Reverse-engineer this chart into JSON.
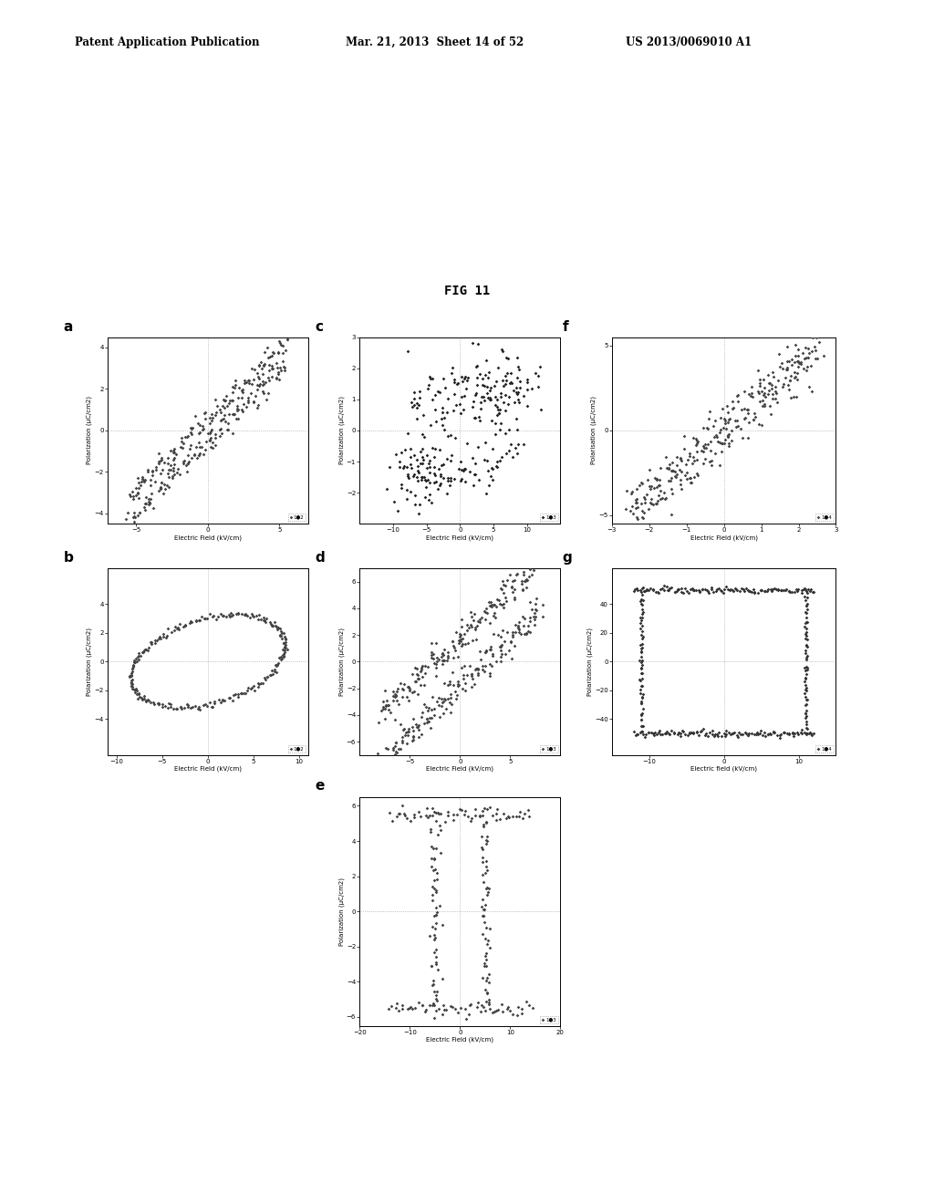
{
  "header_left": "Patent Application Publication",
  "header_center": "Mar. 21, 2013  Sheet 14 of 52",
  "header_right": "US 2013/0069010 A1",
  "fig_title": "FIG 11",
  "subplots": {
    "a": {
      "label": "a",
      "xlim": [
        -7,
        7
      ],
      "ylim": [
        -4.5,
        4.5
      ],
      "xticks": [
        -5,
        0,
        5
      ],
      "yticks": [
        -4,
        -2,
        0,
        2,
        4
      ],
      "xlabel": "Electric Field (kV/cm)",
      "ylabel": "Polarization (μC/cm2)",
      "legend": "1●2",
      "color": "#444444"
    },
    "b": {
      "label": "b",
      "xlim": [
        -11,
        11
      ],
      "ylim": [
        -6.5,
        6.5
      ],
      "xticks": [
        -10,
        -5,
        0,
        5,
        10
      ],
      "yticks": [
        -4,
        -2,
        0,
        2,
        4
      ],
      "xlabel": "Electric Field (kV/cm)",
      "ylabel": "Polarization (μC/cm2)",
      "legend": "1●2",
      "color": "#444444"
    },
    "c": {
      "label": "c",
      "xlim": [
        -15,
        15
      ],
      "ylim": [
        -3,
        3
      ],
      "xticks": [
        -10,
        -5,
        0,
        5,
        10
      ],
      "yticks": [
        -2,
        -1,
        0,
        1,
        2,
        3
      ],
      "xlabel": "Electric Field (kV/cm)",
      "ylabel": "Polarization (μC/cm2)",
      "legend": "1●3",
      "color": "#222222"
    },
    "d": {
      "label": "d",
      "xlim": [
        -10,
        10
      ],
      "ylim": [
        -7,
        7
      ],
      "xticks": [
        -5,
        0,
        5
      ],
      "yticks": [
        -6,
        -4,
        -2,
        0,
        2,
        4,
        6
      ],
      "xlabel": "Electric Field (kV/cm)",
      "ylabel": "Polarization (μC/cm2)",
      "legend": "1●3",
      "color": "#444444"
    },
    "e": {
      "label": "e",
      "xlim": [
        -20,
        20
      ],
      "ylim": [
        -6.5,
        6.5
      ],
      "xticks": [
        -20,
        -10,
        0,
        10,
        20
      ],
      "yticks": [
        -6,
        -4,
        -2,
        0,
        2,
        4,
        6
      ],
      "xlabel": "Electric Field (kV/cm)",
      "ylabel": "Polarization (μC/cm2)",
      "legend": "1●3",
      "color": "#444444"
    },
    "f": {
      "label": "f",
      "xlim": [
        -3,
        3
      ],
      "ylim": [
        -5.5,
        5.5
      ],
      "xticks": [
        -3,
        -2,
        -1,
        0,
        1,
        2,
        3
      ],
      "yticks": [
        -5,
        0,
        5
      ],
      "xlabel": "Electric Field (kV/cm)",
      "ylabel": "Polarisation (μC/cm2)",
      "legend": "1●4",
      "color": "#444444"
    },
    "g": {
      "label": "g",
      "xlim": [
        -15,
        15
      ],
      "ylim": [
        -65,
        65
      ],
      "xticks": [
        -10,
        0,
        10
      ],
      "yticks": [
        -40,
        -20,
        0,
        20,
        40
      ],
      "xlabel": "Electric field (kV/cm)",
      "ylabel": "Polarization (μC/cm2)",
      "legend": "1●4",
      "color": "#333333"
    }
  }
}
